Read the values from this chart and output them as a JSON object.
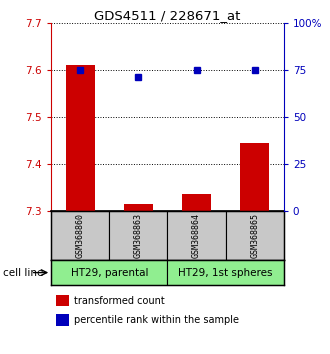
{
  "title": "GDS4511 / 228671_at",
  "samples": [
    "GSM368860",
    "GSM368863",
    "GSM368864",
    "GSM368865"
  ],
  "transformed_counts": [
    7.61,
    7.315,
    7.335,
    7.445
  ],
  "percentile_ranks": [
    75,
    71,
    75,
    75
  ],
  "ylim_left": [
    7.3,
    7.7
  ],
  "ylim_right": [
    0,
    100
  ],
  "yticks_left": [
    7.3,
    7.4,
    7.5,
    7.6,
    7.7
  ],
  "yticks_right": [
    0,
    25,
    50,
    75,
    100
  ],
  "ytick_labels_right": [
    "0",
    "25",
    "50",
    "75",
    "100%"
  ],
  "groups": [
    {
      "label": "HT29, parental",
      "samples": [
        0,
        1
      ],
      "color": "#90EE90"
    },
    {
      "label": "HT29, 1st spheres",
      "samples": [
        2,
        3
      ],
      "color": "#90EE90"
    }
  ],
  "sample_box_color": "#C8C8C8",
  "bar_color": "#CC0000",
  "dot_color": "#0000BB",
  "baseline": 7.3,
  "background_color": "#FFFFFF",
  "legend_items": [
    {
      "label": "transformed count",
      "color": "#CC0000"
    },
    {
      "label": "percentile rank within the sample",
      "color": "#0000BB"
    }
  ],
  "left_tick_color": "#CC0000",
  "right_tick_color": "#0000BB"
}
